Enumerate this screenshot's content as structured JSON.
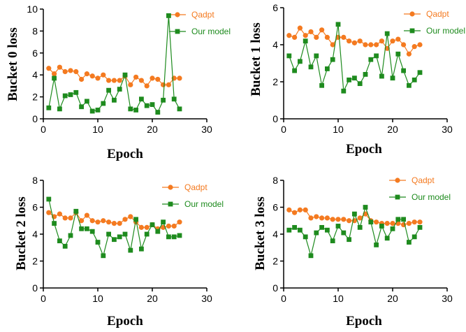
{
  "colors": {
    "qadpt": "#F47A20",
    "ours": "#1E8B1E",
    "axis": "#000000"
  },
  "chart_data": [
    {
      "type": "line",
      "title": "",
      "xlabel": "Epoch",
      "ylabel": "Bucket 0 loss",
      "xlim": [
        0,
        30
      ],
      "ylim": [
        0,
        10
      ],
      "xticks": [
        0,
        10,
        20,
        30
      ],
      "yticks": [
        0,
        2,
        4,
        6,
        8,
        10
      ],
      "grid": false,
      "legend_position": "top-right",
      "x": [
        1,
        2,
        3,
        4,
        5,
        6,
        7,
        8,
        9,
        10,
        11,
        12,
        13,
        14,
        15,
        16,
        17,
        18,
        19,
        20,
        21,
        22,
        23,
        24,
        25
      ],
      "series": [
        {
          "name": "Qadpt",
          "color_key": "qadpt",
          "marker": "circle",
          "values": [
            4.6,
            4.1,
            4.7,
            4.3,
            4.4,
            4.3,
            3.6,
            4.1,
            3.9,
            3.7,
            4.0,
            3.5,
            3.5,
            3.5,
            3.9,
            3.1,
            3.8,
            3.5,
            3.0,
            3.7,
            3.6,
            3.1,
            3.1,
            3.7,
            3.7
          ]
        },
        {
          "name": "Our model",
          "color_key": "ours",
          "marker": "square",
          "values": [
            1.0,
            3.7,
            0.9,
            2.1,
            2.2,
            2.4,
            1.1,
            1.6,
            0.7,
            0.8,
            1.4,
            2.6,
            1.7,
            2.7,
            4.0,
            0.9,
            0.8,
            1.8,
            1.2,
            1.3,
            0.6,
            1.7,
            9.4,
            1.8,
            0.9
          ]
        }
      ]
    },
    {
      "type": "line",
      "title": "",
      "xlabel": "Epoch",
      "ylabel": "Bucket 1 loss",
      "xlim": [
        0,
        30
      ],
      "ylim": [
        0,
        6
      ],
      "xticks": [
        0,
        10,
        20,
        30
      ],
      "yticks": [
        0,
        2,
        4,
        6
      ],
      "grid": false,
      "legend_position": "top-right",
      "x": [
        1,
        2,
        3,
        4,
        5,
        6,
        7,
        8,
        9,
        10,
        11,
        12,
        13,
        14,
        15,
        16,
        17,
        18,
        19,
        20,
        21,
        22,
        23,
        24,
        25
      ],
      "series": [
        {
          "name": "Qadpt",
          "color_key": "qadpt",
          "marker": "circle",
          "values": [
            4.5,
            4.4,
            4.9,
            4.5,
            4.7,
            4.4,
            4.8,
            4.4,
            4.0,
            4.4,
            4.4,
            4.2,
            4.1,
            4.2,
            4.0,
            4.0,
            4.0,
            4.2,
            3.8,
            4.2,
            4.3,
            4.0,
            3.5,
            3.9,
            4.0
          ]
        },
        {
          "name": "Our model",
          "color_key": "ours",
          "marker": "square",
          "values": [
            3.4,
            2.6,
            3.1,
            4.2,
            2.8,
            3.4,
            1.8,
            2.7,
            3.2,
            5.1,
            1.5,
            2.1,
            2.2,
            1.9,
            2.4,
            3.2,
            3.4,
            2.3,
            4.6,
            2.2,
            3.5,
            2.6,
            1.8,
            2.1,
            2.5
          ]
        }
      ]
    },
    {
      "type": "line",
      "title": "",
      "xlabel": "Epoch",
      "ylabel": "Bucket 2 loss",
      "xlim": [
        0,
        30
      ],
      "ylim": [
        0,
        8
      ],
      "xticks": [
        0,
        10,
        20,
        30
      ],
      "yticks": [
        0,
        2,
        4,
        6,
        8
      ],
      "grid": false,
      "legend_position": "top-right",
      "x": [
        1,
        2,
        3,
        4,
        5,
        6,
        7,
        8,
        9,
        10,
        11,
        12,
        13,
        14,
        15,
        16,
        17,
        18,
        19,
        20,
        21,
        22,
        23,
        24,
        25
      ],
      "series": [
        {
          "name": "Qadpt",
          "color_key": "qadpt",
          "marker": "circle",
          "values": [
            5.6,
            5.3,
            5.5,
            5.2,
            5.2,
            5.6,
            5.0,
            5.4,
            5.0,
            4.9,
            5.0,
            4.9,
            4.8,
            4.8,
            5.1,
            5.3,
            4.9,
            4.5,
            4.5,
            4.7,
            4.4,
            4.5,
            4.6,
            4.6,
            4.9
          ]
        },
        {
          "name": "Our model",
          "color_key": "ours",
          "marker": "square",
          "values": [
            6.6,
            4.8,
            3.5,
            3.1,
            3.9,
            5.7,
            4.4,
            4.4,
            4.2,
            3.4,
            2.4,
            4.0,
            3.6,
            3.8,
            4.0,
            2.8,
            5.1,
            2.9,
            4.0,
            4.7,
            4.2,
            4.9,
            3.8,
            3.8,
            3.9
          ]
        }
      ]
    },
    {
      "type": "line",
      "title": "",
      "xlabel": "Epoch",
      "ylabel": "Bucket 3 loss",
      "xlim": [
        0,
        30
      ],
      "ylim": [
        0,
        8
      ],
      "xticks": [
        0,
        10,
        20,
        30
      ],
      "yticks": [
        0,
        2,
        4,
        6,
        8
      ],
      "grid": false,
      "legend_position": "top-right",
      "x": [
        1,
        2,
        3,
        4,
        5,
        6,
        7,
        8,
        9,
        10,
        11,
        12,
        13,
        14,
        15,
        16,
        17,
        18,
        19,
        20,
        21,
        22,
        23,
        24,
        25
      ],
      "series": [
        {
          "name": "Qadpt",
          "color_key": "qadpt",
          "marker": "circle",
          "values": [
            5.8,
            5.6,
            5.8,
            5.8,
            5.2,
            5.3,
            5.2,
            5.2,
            5.1,
            5.1,
            5.1,
            5.0,
            5.0,
            5.2,
            5.5,
            5.0,
            4.9,
            4.8,
            4.8,
            4.8,
            4.8,
            4.7,
            4.8,
            4.9,
            4.9
          ]
        },
        {
          "name": "Our model",
          "color_key": "ours",
          "marker": "square",
          "values": [
            4.3,
            4.5,
            4.3,
            3.8,
            2.4,
            4.1,
            4.5,
            4.3,
            3.5,
            4.6,
            4.1,
            3.6,
            5.5,
            4.5,
            6.0,
            4.9,
            3.2,
            4.6,
            3.7,
            4.4,
            5.1,
            5.1,
            3.4,
            3.8,
            4.5
          ]
        }
      ]
    }
  ]
}
